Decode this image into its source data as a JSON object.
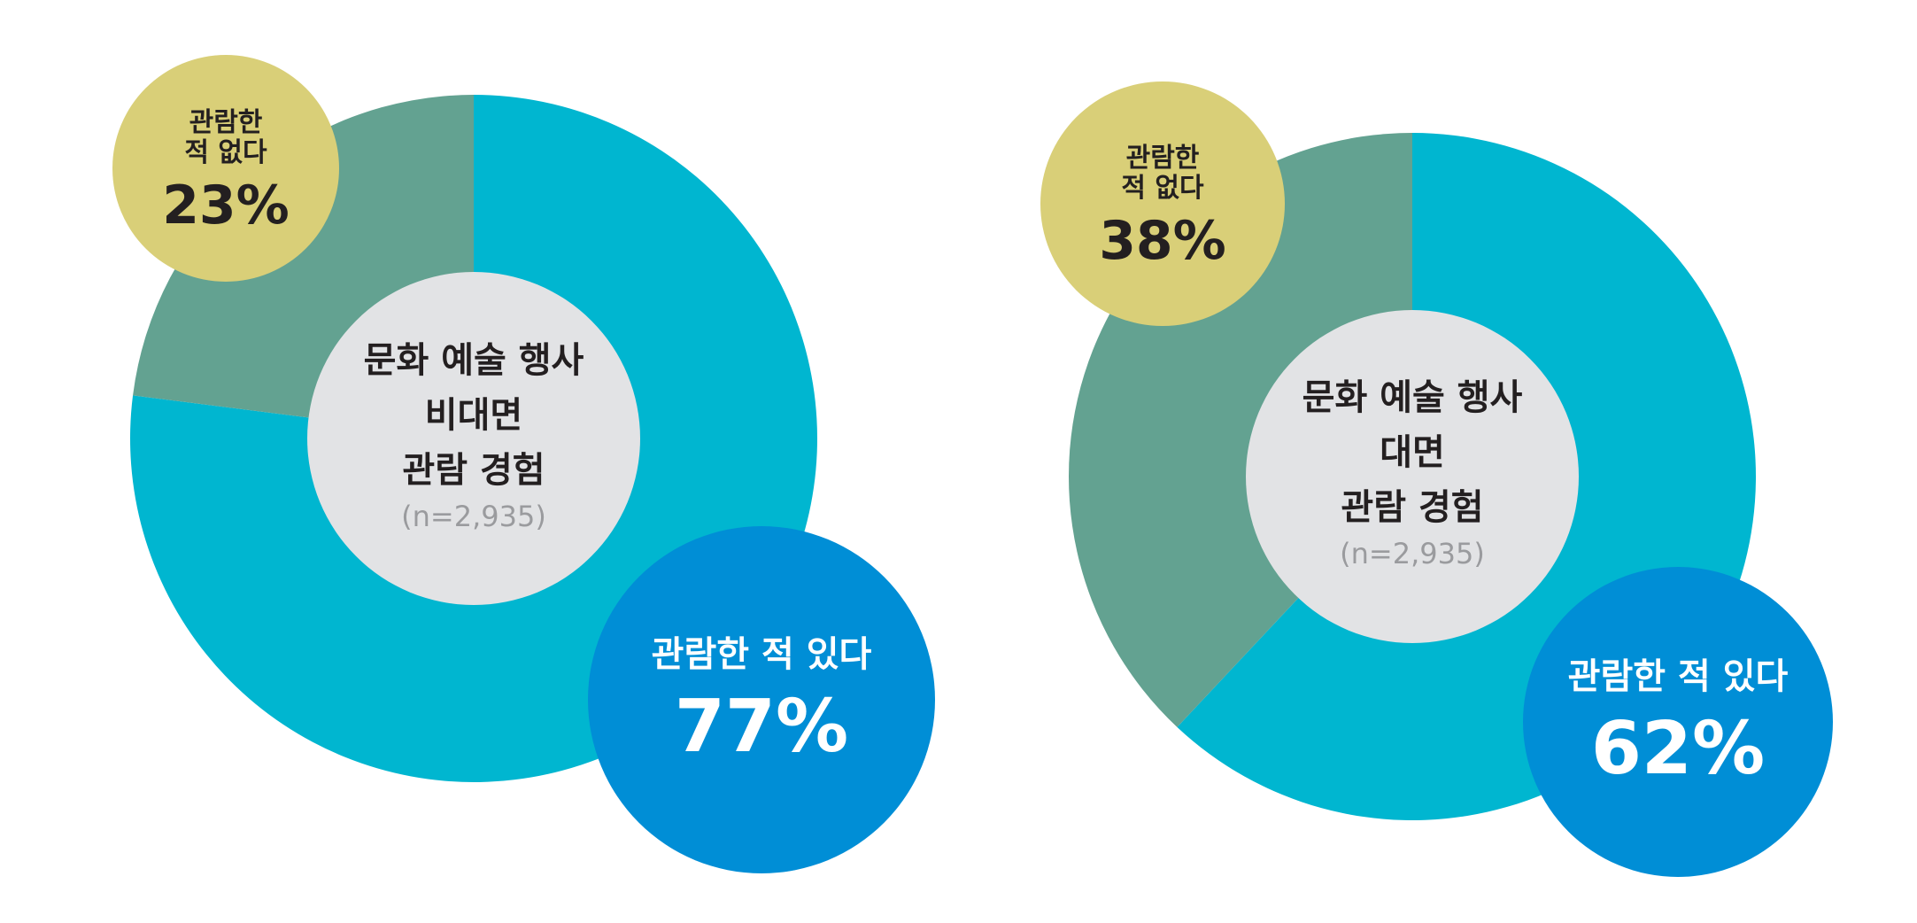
{
  "chart_data": [
    {
      "type": "pie",
      "center_label": [
        "문화 예술 행사",
        "비대면",
        "관람 경험"
      ],
      "sample_size": "(n=2,935)",
      "slices": [
        {
          "label_lines": [
            "관람한 적 있다"
          ],
          "value": 77,
          "value_text": "77%",
          "color": "#00b6d0"
        },
        {
          "label_lines": [
            "관람한",
            "적 없다"
          ],
          "value": 23,
          "value_text": "23%",
          "color": "#63a291"
        }
      ]
    },
    {
      "type": "pie",
      "center_label": [
        "문화 예술 행사",
        "대면",
        "관람 경험"
      ],
      "sample_size": "(n=2,935)",
      "slices": [
        {
          "label_lines": [
            "관람한 적 있다"
          ],
          "value": 62,
          "value_text": "62%",
          "color": "#00b6d0"
        },
        {
          "label_lines": [
            "관람한",
            "적 없다"
          ],
          "value": 38,
          "value_text": "38%",
          "color": "#63a291"
        }
      ]
    }
  ],
  "colors": {
    "center_bg": "#e2e3e5",
    "yes_bubble": "#008ed6",
    "no_bubble": "#d9cf78"
  }
}
